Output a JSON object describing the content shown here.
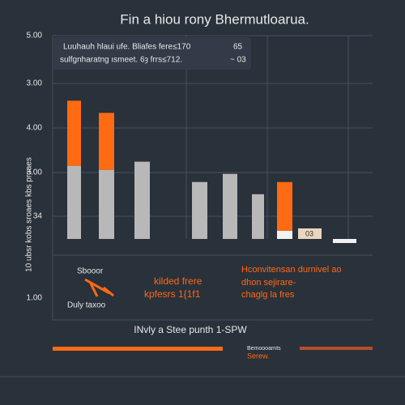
{
  "chart_data": {
    "type": "bar",
    "title": "Fin a hiou rony Bhermutloarua.",
    "y_axis_labels": [
      "5.00",
      "3.00",
      "4.00",
      "3.00",
      "34",
      "1.00"
    ],
    "y_axis_title": "10 ubsr kobs sroaes kbs proaes",
    "tooltip": [
      "Luuhauh hlaui ufe.  Bliafes fere≤170",
      "sulfgnharatng ısmeet. 6ȝ frrs≤712."
    ],
    "tooltip_values": [
      "65",
      "~ 03"
    ],
    "bar_note": "03",
    "categories": [
      null,
      null,
      null,
      null,
      null,
      null,
      null,
      null
    ],
    "ylim": [
      0,
      5
    ],
    "series": [
      {
        "color": "#b8b8b8",
        "values": [
          1.8,
          1.7,
          1.9,
          1.4,
          1.6,
          1.1,
          null,
          null
        ]
      },
      {
        "color": "#ff6a13",
        "values": [
          1.6,
          1.4,
          null,
          null,
          null,
          null,
          1.2,
          null
        ]
      },
      {
        "color": "#f2f2f2",
        "values": [
          null,
          null,
          null,
          null,
          null,
          null,
          0.2,
          0.1
        ]
      }
    ],
    "panel_texts": {
      "left": [
        "Sbooor",
        "Duly taxoo"
      ],
      "middle": [
        "kilded frere",
        "kpfesrs 1{1f1"
      ],
      "right": [
        "Hconvitensan durnivel ao",
        "dhon sejirare-",
        "chaglg la fres"
      ]
    },
    "x_axis_title": "INvly a Stee punth 1-SPW",
    "footnote": [
      "Bemoooarnts",
      "Serew."
    ]
  }
}
